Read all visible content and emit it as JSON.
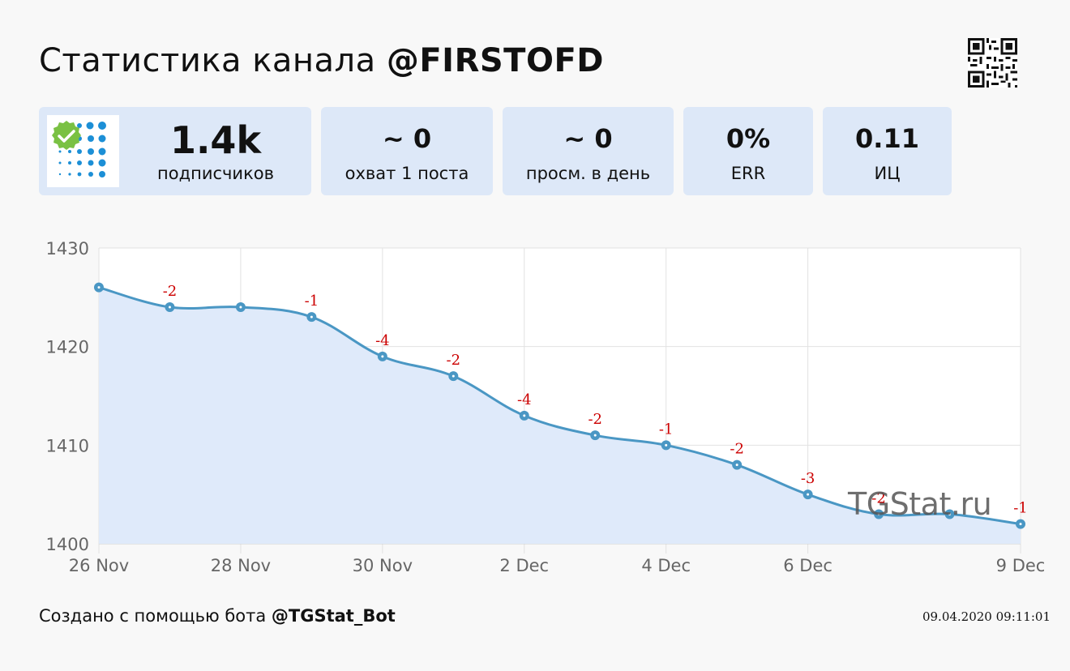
{
  "header": {
    "title_prefix": "Статистика канала",
    "channel": "@FIRSTOFD"
  },
  "stats": [
    {
      "value": "1.4k",
      "label": "подписчиков"
    },
    {
      "value": "~ 0",
      "label": "охват 1 поста"
    },
    {
      "value": "~ 0",
      "label": "просм. в день"
    },
    {
      "value": "0%",
      "label": "ERR"
    },
    {
      "value": "0.11",
      "label": "ИЦ"
    }
  ],
  "footer": {
    "prefix": "Создано с помощью бота",
    "bot": "@TGStat_Bot",
    "timestamp": "09.04.2020 09:11:01"
  },
  "watermark": "TGStat.ru",
  "colors": {
    "card_bg": "#dde8f8",
    "line": "#4a97c4",
    "area": "#dfeafa",
    "delta_label": "#cc0000",
    "badge_green": "#7ac143",
    "avatar_dots": "#1c8fd6"
  },
  "chart_data": {
    "type": "area",
    "title": "",
    "xlabel": "",
    "ylabel": "",
    "x": [
      "26 Nov",
      "27 Nov",
      "28 Nov",
      "29 Nov",
      "30 Nov",
      "1 Dec",
      "2 Dec",
      "3 Dec",
      "4 Dec",
      "5 Dec",
      "6 Dec",
      "7 Dec",
      "8 Dec",
      "9 Dec"
    ],
    "values": [
      1426,
      1424,
      1424,
      1423,
      1419,
      1417,
      1413,
      1411,
      1410,
      1408,
      1405,
      1403,
      1403,
      1402
    ],
    "point_labels": [
      "",
      "-2",
      "",
      "-1",
      "-4",
      "-2",
      "-4",
      "-2",
      "-1",
      "-2",
      "-3",
      "-2",
      "",
      "-1"
    ],
    "x_ticks": [
      "26 Nov",
      "28 Nov",
      "30 Nov",
      "2 Dec",
      "4 Dec",
      "6 Dec",
      "9 Dec"
    ],
    "x_tick_index": [
      0,
      2,
      4,
      6,
      8,
      10,
      13
    ],
    "y_ticks": [
      1400,
      1410,
      1420,
      1430
    ],
    "ylim": [
      1400,
      1430
    ],
    "grid": true,
    "legend": "none"
  }
}
